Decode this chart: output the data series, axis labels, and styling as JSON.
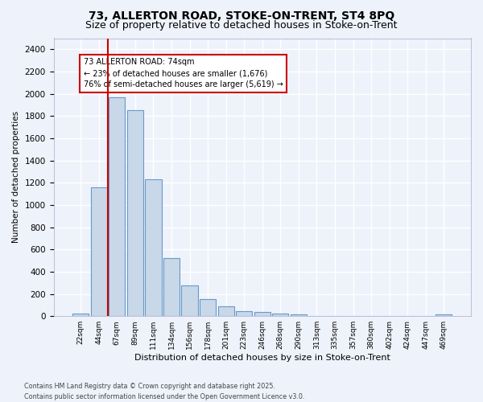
{
  "title1": "73, ALLERTON ROAD, STOKE-ON-TRENT, ST4 8PQ",
  "title2": "Size of property relative to detached houses in Stoke-on-Trent",
  "xlabel": "Distribution of detached houses by size in Stoke-on-Trent",
  "ylabel": "Number of detached properties",
  "bar_labels": [
    "22sqm",
    "44sqm",
    "67sqm",
    "89sqm",
    "111sqm",
    "134sqm",
    "156sqm",
    "178sqm",
    "201sqm",
    "223sqm",
    "246sqm",
    "268sqm",
    "290sqm",
    "313sqm",
    "335sqm",
    "357sqm",
    "380sqm",
    "402sqm",
    "424sqm",
    "447sqm",
    "469sqm"
  ],
  "bar_values": [
    25,
    1160,
    1970,
    1850,
    1230,
    520,
    275,
    150,
    90,
    45,
    40,
    20,
    15,
    5,
    5,
    3,
    3,
    2,
    2,
    2,
    15
  ],
  "bar_color": "#c8d8e8",
  "bar_edge_color": "#6699cc",
  "vline_x_idx": 2,
  "vline_color": "#cc0000",
  "annotation_title": "73 ALLERTON ROAD: 74sqm",
  "annotation_line1": "← 23% of detached houses are smaller (1,676)",
  "annotation_line2": "76% of semi-detached houses are larger (5,619) →",
  "annotation_box_color": "#ffffff",
  "annotation_border_color": "#cc0000",
  "ylim": [
    0,
    2500
  ],
  "yticks": [
    0,
    200,
    400,
    600,
    800,
    1000,
    1200,
    1400,
    1600,
    1800,
    2000,
    2200,
    2400
  ],
  "footer1": "Contains HM Land Registry data © Crown copyright and database right 2025.",
  "footer2": "Contains public sector information licensed under the Open Government Licence v3.0.",
  "bg_color": "#eef2fb",
  "grid_color": "#ffffff",
  "title_fontsize": 10,
  "subtitle_fontsize": 9
}
